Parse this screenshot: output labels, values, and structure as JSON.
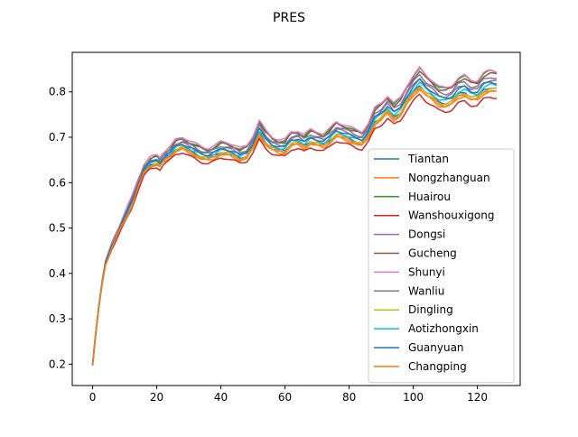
{
  "chart_data": {
    "type": "line",
    "title": "PRES",
    "xlabel": "",
    "ylabel": "",
    "xlim": [
      -6.35,
      133.35
    ],
    "ylim": [
      0.153,
      0.887
    ],
    "x_ticks": [
      0,
      20,
      40,
      60,
      80,
      100,
      120
    ],
    "y_ticks": [
      0.2,
      0.3,
      0.4,
      0.5,
      0.6,
      0.7,
      0.8
    ],
    "x_tick_labels": [
      "0",
      "20",
      "40",
      "60",
      "80",
      "100",
      "120"
    ],
    "y_tick_labels": [
      "0.2",
      "0.3",
      "0.4",
      "0.5",
      "0.6",
      "0.7",
      "0.8"
    ],
    "grid": false,
    "legend_position": "lower-right",
    "base_anchors": [
      [
        0,
        0.2
      ],
      [
        1,
        0.27
      ],
      [
        2,
        0.33
      ],
      [
        3,
        0.38
      ],
      [
        4,
        0.42
      ],
      [
        5,
        0.44
      ],
      [
        6,
        0.46
      ],
      [
        8,
        0.49
      ],
      [
        10,
        0.52
      ],
      [
        12,
        0.55
      ],
      [
        14,
        0.59
      ],
      [
        16,
        0.625
      ],
      [
        18,
        0.64
      ],
      [
        20,
        0.645
      ],
      [
        21,
        0.64
      ],
      [
        22,
        0.65
      ],
      [
        24,
        0.66
      ],
      [
        26,
        0.675
      ],
      [
        28,
        0.68
      ],
      [
        30,
        0.672
      ],
      [
        32,
        0.665
      ],
      [
        34,
        0.658
      ],
      [
        36,
        0.655
      ],
      [
        38,
        0.66
      ],
      [
        40,
        0.668
      ],
      [
        42,
        0.667
      ],
      [
        44,
        0.662
      ],
      [
        46,
        0.655
      ],
      [
        48,
        0.66
      ],
      [
        50,
        0.68
      ],
      [
        52,
        0.71
      ],
      [
        54,
        0.69
      ],
      [
        56,
        0.678
      ],
      [
        58,
        0.672
      ],
      [
        60,
        0.672
      ],
      [
        62,
        0.688
      ],
      [
        64,
        0.69
      ],
      [
        66,
        0.682
      ],
      [
        68,
        0.692
      ],
      [
        70,
        0.688
      ],
      [
        72,
        0.684
      ],
      [
        74,
        0.694
      ],
      [
        76,
        0.708
      ],
      [
        78,
        0.703
      ],
      [
        80,
        0.698
      ],
      [
        82,
        0.692
      ],
      [
        84,
        0.688
      ],
      [
        86,
        0.705
      ],
      [
        88,
        0.735
      ],
      [
        90,
        0.745
      ],
      [
        92,
        0.76
      ],
      [
        94,
        0.745
      ],
      [
        96,
        0.755
      ],
      [
        98,
        0.78
      ],
      [
        100,
        0.8
      ],
      [
        102,
        0.815
      ],
      [
        104,
        0.8
      ],
      [
        106,
        0.79
      ],
      [
        108,
        0.778
      ],
      [
        110,
        0.775
      ],
      [
        112,
        0.78
      ],
      [
        114,
        0.795
      ],
      [
        116,
        0.8
      ],
      [
        118,
        0.79
      ],
      [
        120,
        0.79
      ],
      [
        122,
        0.805
      ],
      [
        124,
        0.81
      ],
      [
        126,
        0.808
      ]
    ],
    "series": [
      {
        "name": "Tiantan",
        "color": "#1f77b4",
        "offset": 0.0,
        "gain": 1.0
      },
      {
        "name": "Nongzhanguan",
        "color": "#ff7f0e",
        "offset": -0.005,
        "gain": 0.95
      },
      {
        "name": "Huairou",
        "color": "#2ca02c",
        "offset": 0.01,
        "gain": 1.35
      },
      {
        "name": "Wanshouxigong",
        "color": "#d62728",
        "offset": -0.01,
        "gain": 0.85
      },
      {
        "name": "Dongsi",
        "color": "#9467bd",
        "offset": 0.005,
        "gain": 1.15
      },
      {
        "name": "Gucheng",
        "color": "#8c564b",
        "offset": 0.012,
        "gain": 1.25
      },
      {
        "name": "Shunyi",
        "color": "#e377c2",
        "offset": 0.015,
        "gain": 1.3
      },
      {
        "name": "Wanliu",
        "color": "#7f7f7f",
        "offset": 0.008,
        "gain": 1.2
      },
      {
        "name": "Dingling",
        "color": "#bcbd22",
        "offset": -0.002,
        "gain": 1.0
      },
      {
        "name": "Aotizhongxin",
        "color": "#17becf",
        "offset": 0.002,
        "gain": 1.05
      },
      {
        "name": "Guanyuan",
        "color": "#1f77b4",
        "offset": 0.004,
        "gain": 1.1
      },
      {
        "name": "Changping",
        "color": "#ff7f0e",
        "offset": -0.004,
        "gain": 0.97
      }
    ]
  }
}
